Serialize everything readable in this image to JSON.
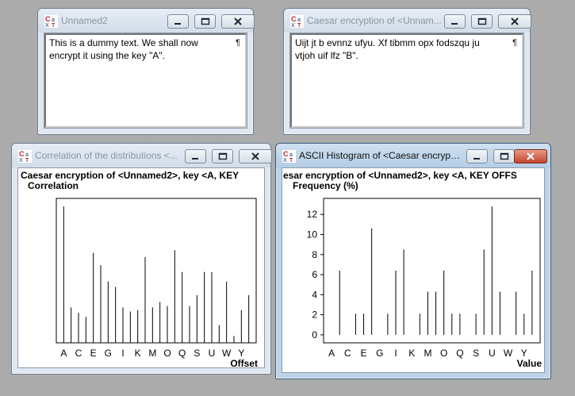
{
  "colors": {
    "accent": "#3b5a7a",
    "close_red": "#c4452c"
  },
  "app_icon": "cryptool-icon",
  "windows": [
    {
      "title": "Unnamed2",
      "text_lines": [
        "This is a dummy text. We shall now",
        "encrypt it using the key \"A\"."
      ],
      "end_marker": "¶"
    },
    {
      "title": "Caesar encryption of <Unnam...",
      "text_lines": [
        "Uijt jt b evnnz ufyu. Xf tibmm opx fodszqu ju",
        "vtjoh uif lfz \"B\"."
      ],
      "end_marker": "¶"
    },
    {
      "title": "Correlation of the distributions <..."
    },
    {
      "title": "ASCII Histogram of <Caesar encrypti..."
    }
  ],
  "chart_data": [
    {
      "type": "bar",
      "title": "Caesar encryption of <Unnamed2>, key <A, KEY",
      "ylabel": "Correlation",
      "xlabel": "Offset",
      "tick_labels": [
        "A",
        "C",
        "E",
        "G",
        "I",
        "K",
        "M",
        "O",
        "Q",
        "S",
        "U",
        "W",
        "Y"
      ],
      "categories": [
        "A",
        "B",
        "C",
        "D",
        "E",
        "F",
        "G",
        "H",
        "I",
        "J",
        "K",
        "L",
        "M",
        "N",
        "O",
        "P",
        "Q",
        "R",
        "S",
        "T",
        "U",
        "V",
        "W",
        "X",
        "Y",
        "Z"
      ],
      "values": [
        1.0,
        0.26,
        0.22,
        0.19,
        0.66,
        0.57,
        0.45,
        0.41,
        0.26,
        0.23,
        0.24,
        0.63,
        0.26,
        0.3,
        0.27,
        0.68,
        0.52,
        0.27,
        0.35,
        0.52,
        0.52,
        0.13,
        0.45,
        0.05,
        0.24,
        0.35
      ],
      "ylim": [
        0,
        1.06
      ],
      "yticks_shown": false
    },
    {
      "type": "bar",
      "title": "esar encryption of <Unnamed2>, key <A, KEY OFFS",
      "ylabel": "Frequency (%)",
      "xlabel": "Value",
      "tick_labels": [
        "A",
        "C",
        "E",
        "G",
        "I",
        "K",
        "M",
        "O",
        "Q",
        "S",
        "U",
        "W",
        "Y"
      ],
      "yticks": [
        0,
        2,
        4,
        6,
        8,
        10,
        12
      ],
      "categories": [
        "A",
        "B",
        "C",
        "D",
        "E",
        "F",
        "G",
        "H",
        "I",
        "J",
        "K",
        "L",
        "M",
        "N",
        "O",
        "P",
        "Q",
        "R",
        "S",
        "T",
        "U",
        "V",
        "W",
        "X",
        "Y",
        "Z"
      ],
      "values": [
        0,
        6.4,
        0,
        2.1,
        2.1,
        10.6,
        0,
        2.1,
        6.4,
        8.5,
        0,
        2.1,
        4.3,
        4.3,
        6.4,
        2.1,
        2.1,
        0,
        2.1,
        8.5,
        12.8,
        4.3,
        0,
        4.3,
        2.1,
        6.4
      ],
      "ylim": [
        -0.8,
        13.6
      ]
    }
  ]
}
